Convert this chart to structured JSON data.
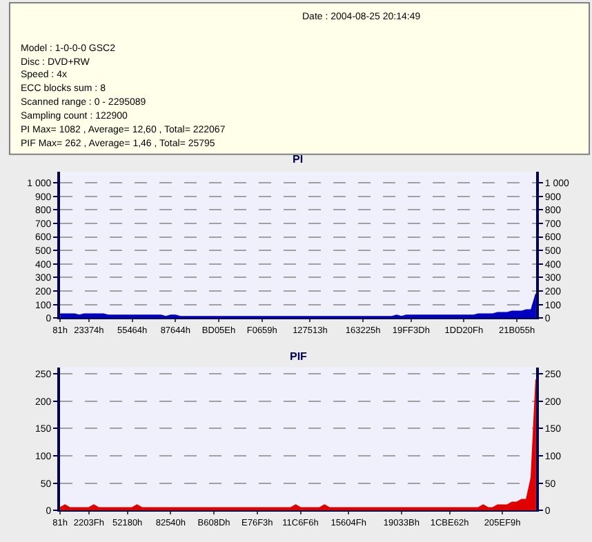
{
  "chart_data": [
    {
      "type": "other",
      "annotations": [
        "Date : 2004-08-25 20:14:49",
        "Model : 1-0-0-0 GSC2",
        "Disc : DVD+RW",
        "Speed : 4x",
        "ECC blocks sum : 8",
        "Scanned range : 0 - 2295089",
        "Sampling count : 122900",
        "PI Max= 1082 , Average= 12,60 , Total= 222067",
        "PIF Max= 262 , Average= 1,46 , Total= 25795"
      ]
    },
    {
      "type": "area",
      "title": "PI",
      "grid": "y",
      "categories": [
        "81h",
        null,
        null,
        null,
        null,
        null,
        "23374h",
        null,
        null,
        null,
        null,
        null,
        null,
        null,
        null,
        "55464h",
        null,
        null,
        null,
        null,
        null,
        null,
        null,
        null,
        "87644h",
        null,
        null,
        null,
        null,
        null,
        null,
        null,
        null,
        "BD05Eh",
        null,
        null,
        null,
        null,
        null,
        null,
        null,
        null,
        "F0659h",
        null,
        null,
        null,
        null,
        null,
        null,
        null,
        null,
        null,
        "127513h",
        null,
        null,
        null,
        null,
        null,
        null,
        null,
        null,
        null,
        null,
        "163225h",
        null,
        null,
        null,
        null,
        null,
        null,
        null,
        null,
        null,
        "19FF3Dh",
        null,
        null,
        null,
        null,
        null,
        null,
        null,
        null,
        null,
        null,
        "1DD20Fh",
        null,
        null,
        null,
        null,
        null,
        null,
        null,
        null,
        null,
        null,
        "21B055h",
        null,
        null,
        null,
        null
      ],
      "series": [
        {
          "color": "#0000c0",
          "values": [
            30,
            30,
            30,
            30,
            20,
            30,
            30,
            30,
            30,
            30,
            20,
            20,
            20,
            20,
            20,
            20,
            20,
            20,
            20,
            20,
            20,
            20,
            10,
            20,
            20,
            10,
            10,
            10,
            10,
            10,
            10,
            10,
            10,
            10,
            10,
            10,
            10,
            10,
            10,
            10,
            10,
            10,
            10,
            10,
            10,
            10,
            10,
            10,
            10,
            10,
            10,
            10,
            10,
            10,
            10,
            10,
            10,
            10,
            10,
            10,
            10,
            10,
            10,
            10,
            10,
            10,
            10,
            10,
            10,
            10,
            20,
            10,
            20,
            20,
            20,
            20,
            20,
            20,
            20,
            20,
            20,
            20,
            20,
            20,
            20,
            20,
            20,
            30,
            30,
            30,
            30,
            40,
            40,
            40,
            50,
            50,
            50,
            60,
            60,
            180
          ]
        }
      ],
      "ylim": [
        0,
        1080
      ],
      "yticks": [
        0,
        100,
        200,
        300,
        400,
        500,
        600,
        700,
        800,
        900,
        {
          "value": 1000,
          "label": "1 000"
        }
      ],
      "y2lim": [
        0,
        1080
      ],
      "y2ticks": [
        0,
        100,
        200,
        300,
        400,
        500,
        600,
        700,
        800,
        900,
        {
          "value": 1000,
          "label": "1 000"
        }
      ]
    },
    {
      "type": "area",
      "title": "PIF",
      "grid": "y",
      "categories": [
        "81h",
        null,
        null,
        null,
        null,
        null,
        "2203Fh",
        null,
        null,
        null,
        null,
        null,
        null,
        null,
        "52180h",
        null,
        null,
        null,
        null,
        null,
        null,
        null,
        null,
        "82540h",
        null,
        null,
        null,
        null,
        null,
        null,
        null,
        null,
        "B608Dh",
        null,
        null,
        null,
        null,
        null,
        null,
        null,
        null,
        "E76F3h",
        null,
        null,
        null,
        null,
        null,
        null,
        null,
        null,
        "11C6F6h",
        null,
        null,
        null,
        null,
        null,
        null,
        null,
        null,
        null,
        "15604Fh",
        null,
        null,
        null,
        null,
        null,
        null,
        null,
        null,
        null,
        null,
        "19033Bh",
        null,
        null,
        null,
        null,
        null,
        null,
        null,
        null,
        null,
        "1CBE62h",
        null,
        null,
        null,
        null,
        null,
        null,
        null,
        null,
        null,
        null,
        "205EF9h",
        null,
        null,
        null,
        null,
        null,
        null,
        null
      ],
      "series": [
        {
          "color": "#e00000",
          "values": [
            5,
            10,
            5,
            5,
            5,
            5,
            5,
            10,
            5,
            5,
            5,
            5,
            5,
            5,
            5,
            5,
            10,
            5,
            5,
            5,
            5,
            5,
            5,
            5,
            5,
            5,
            5,
            5,
            5,
            5,
            5,
            5,
            5,
            5,
            5,
            5,
            5,
            5,
            5,
            5,
            5,
            5,
            5,
            5,
            5,
            5,
            5,
            5,
            5,
            10,
            5,
            5,
            5,
            5,
            5,
            10,
            5,
            5,
            5,
            5,
            5,
            5,
            5,
            5,
            5,
            5,
            5,
            5,
            5,
            5,
            5,
            5,
            5,
            5,
            5,
            5,
            5,
            5,
            5,
            5,
            5,
            5,
            5,
            5,
            5,
            5,
            5,
            5,
            10,
            5,
            5,
            10,
            10,
            10,
            15,
            15,
            20,
            20,
            60,
            240
          ]
        }
      ],
      "ylim": [
        0,
        262
      ],
      "yticks": [
        0,
        50,
        100,
        150,
        200,
        250
      ],
      "y2lim": [
        0,
        262
      ],
      "y2ticks": [
        0,
        50,
        100,
        150,
        200,
        250
      ]
    }
  ]
}
